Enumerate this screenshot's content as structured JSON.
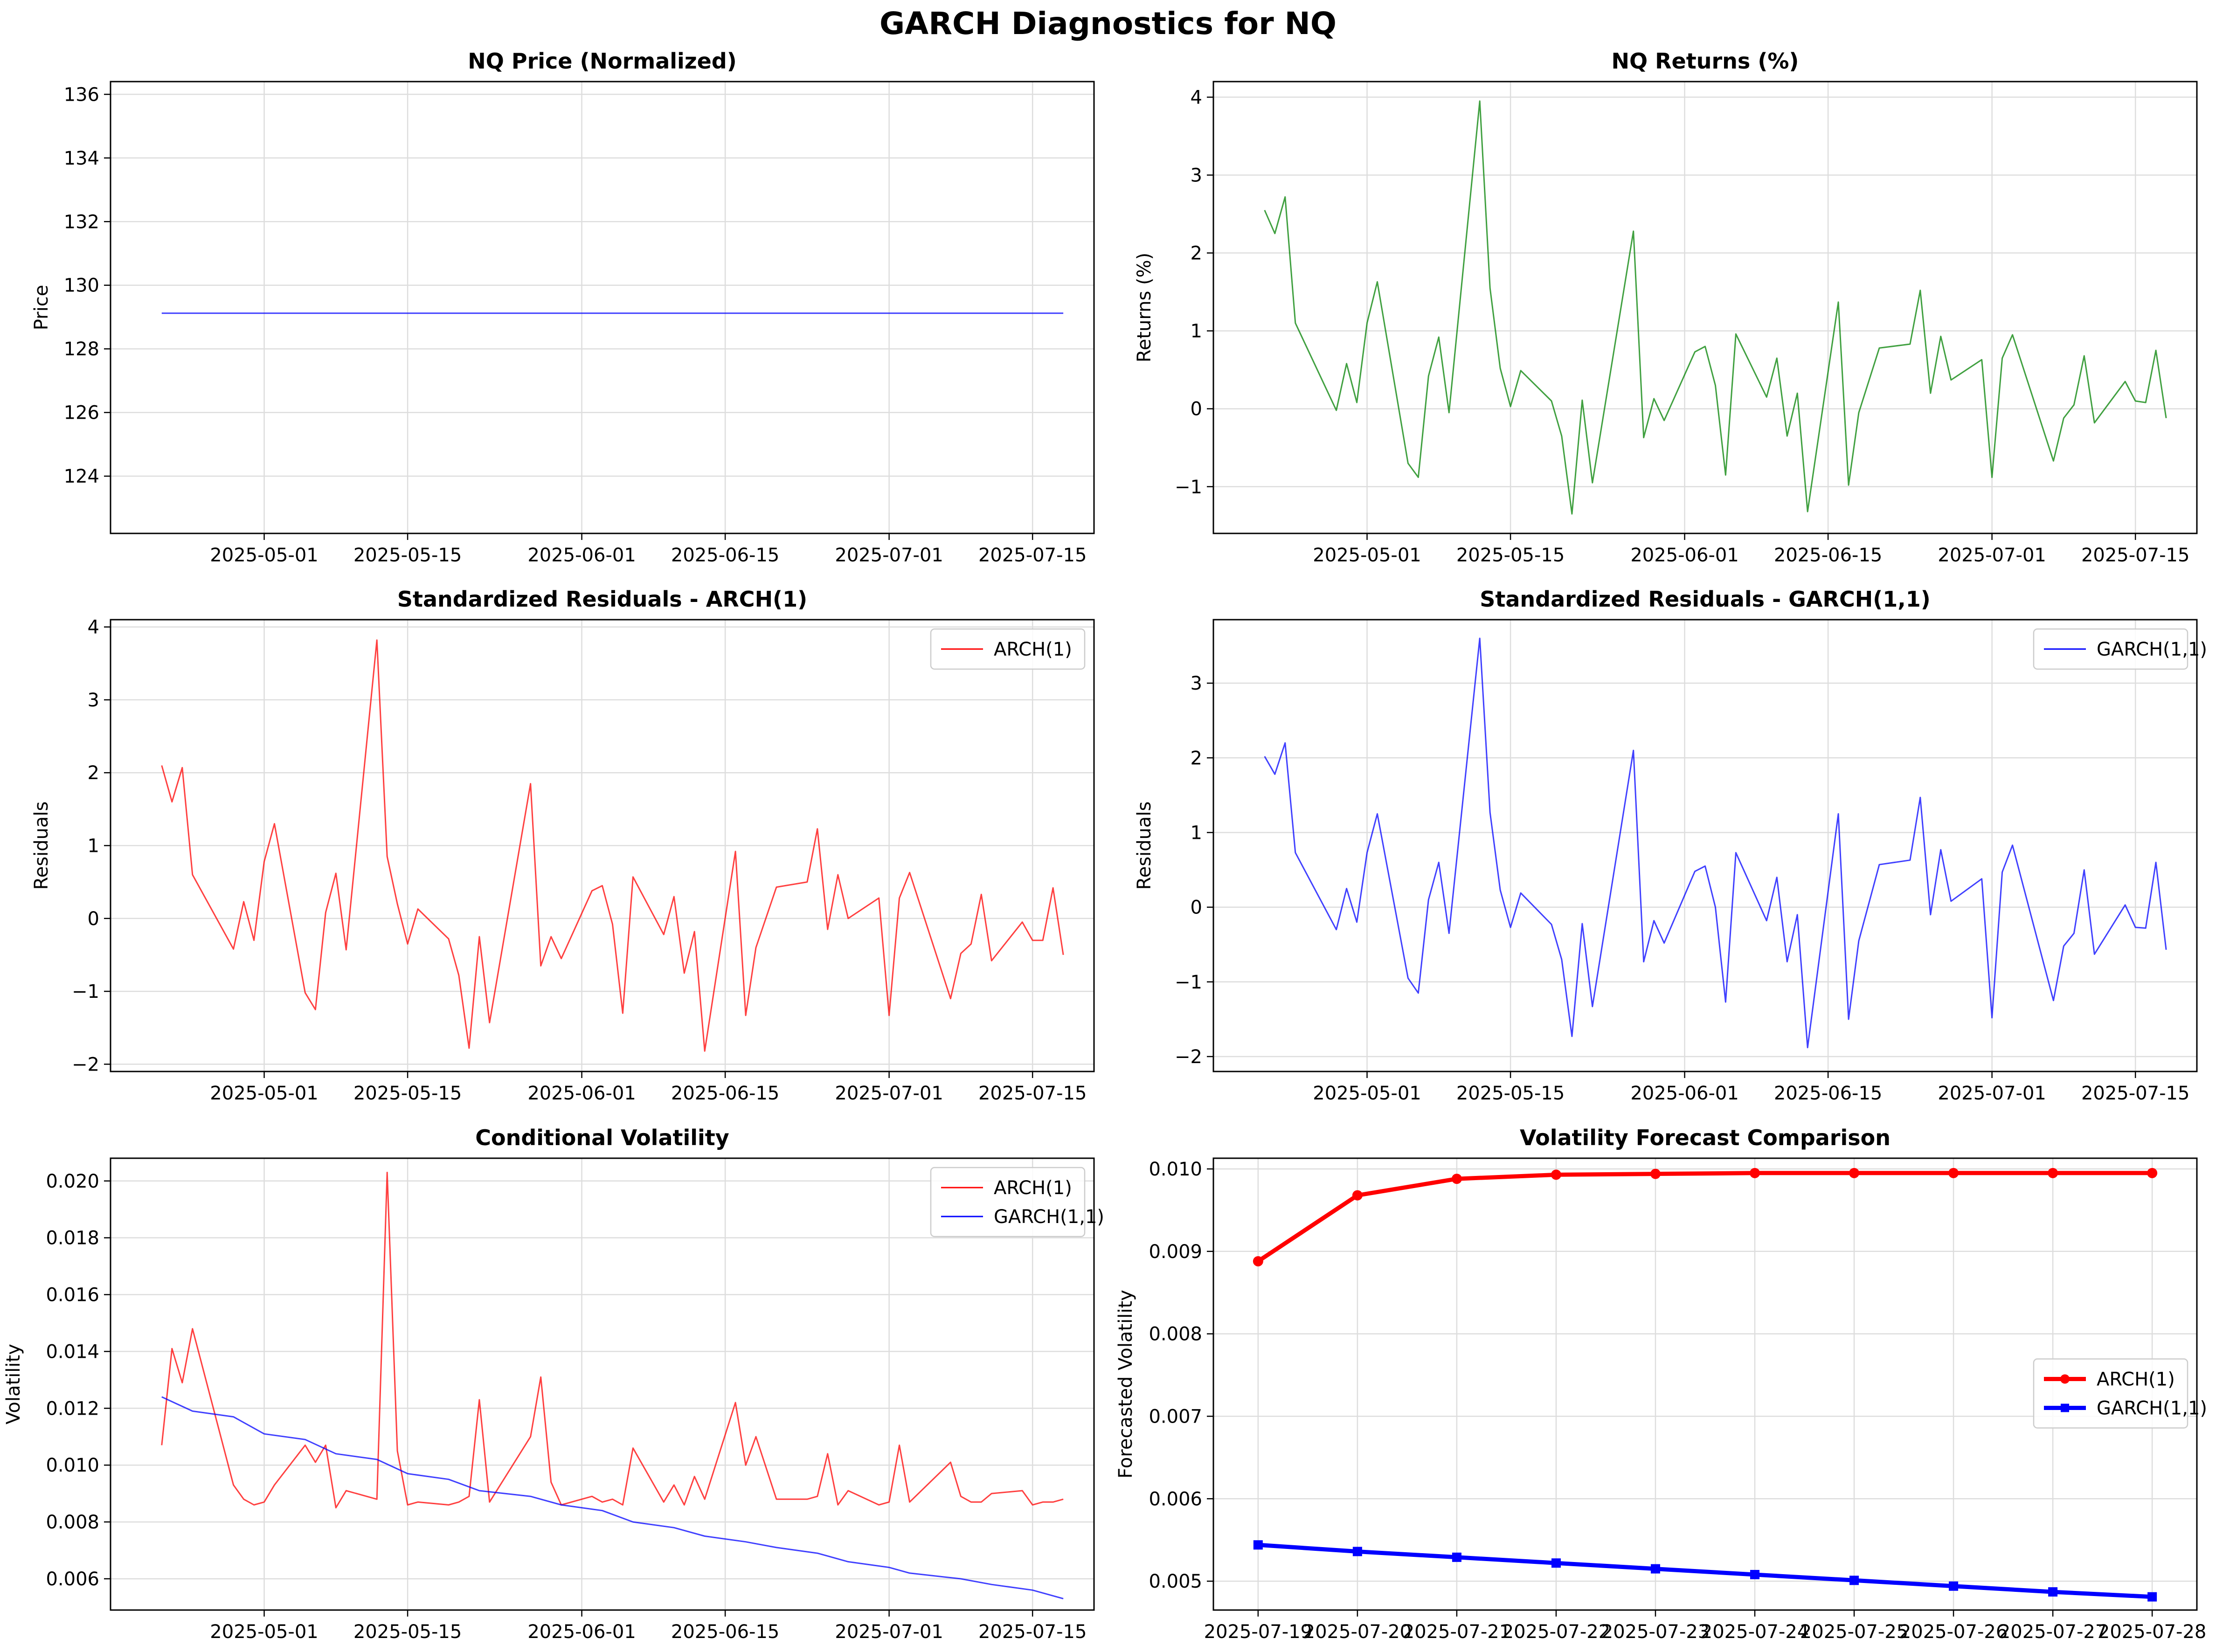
{
  "figure": {
    "title": "GARCH Diagnostics for NQ"
  },
  "colors": {
    "arch": "#ff0000",
    "garch": "#0000ff",
    "returns": "#008000",
    "price": "#0000ff",
    "grid": "#dddddd"
  },
  "chart_data": [
    {
      "id": "price",
      "type": "line",
      "title": "NQ Price (Normalized)",
      "xlabel": "",
      "ylabel": "Price",
      "x_type": "date",
      "xlim": [
        "2025-04-16",
        "2025-07-21"
      ],
      "ylim": [
        122.2,
        136.4
      ],
      "yticks": [
        124,
        126,
        128,
        130,
        132,
        134,
        136
      ],
      "xticks": [
        "2025-05-01",
        "2025-05-15",
        "2025-06-01",
        "2025-06-15",
        "2025-07-01",
        "2025-07-15"
      ],
      "grid": true,
      "legend": null,
      "series": [
        {
          "name": "",
          "color": "#0000ff",
          "lw": 3,
          "x": [
            "2025-04-21",
            "2025-07-18"
          ],
          "y": [
            129.12,
            129.12
          ]
        }
      ]
    },
    {
      "id": "returns",
      "type": "line",
      "title": "NQ Returns (%)",
      "xlabel": "",
      "ylabel": "Returns (%)",
      "x_type": "date",
      "xlim": [
        "2025-04-16",
        "2025-07-21"
      ],
      "ylim": [
        -1.6,
        4.2
      ],
      "yticks": [
        -1,
        0,
        1,
        2,
        3,
        4
      ],
      "xticks": [
        "2025-05-01",
        "2025-05-15",
        "2025-06-01",
        "2025-06-15",
        "2025-07-01",
        "2025-07-15"
      ],
      "grid": true,
      "legend": null,
      "series": [
        {
          "name": "",
          "color": "#008000",
          "lw": 3,
          "x": [
            "2025-04-21",
            "2025-04-22",
            "2025-04-23",
            "2025-04-24",
            "2025-04-28",
            "2025-04-29",
            "2025-04-30",
            "2025-05-01",
            "2025-05-02",
            "2025-05-05",
            "2025-05-06",
            "2025-05-07",
            "2025-05-08",
            "2025-05-09",
            "2025-05-12",
            "2025-05-13",
            "2025-05-14",
            "2025-05-15",
            "2025-05-16",
            "2025-05-19",
            "2025-05-20",
            "2025-05-21",
            "2025-05-22",
            "2025-05-23",
            "2025-05-27",
            "2025-05-28",
            "2025-05-29",
            "2025-05-30",
            "2025-06-02",
            "2025-06-03",
            "2025-06-04",
            "2025-06-05",
            "2025-06-06",
            "2025-06-09",
            "2025-06-10",
            "2025-06-11",
            "2025-06-12",
            "2025-06-13",
            "2025-06-16",
            "2025-06-17",
            "2025-06-18",
            "2025-06-20",
            "2025-06-23",
            "2025-06-24",
            "2025-06-25",
            "2025-06-26",
            "2025-06-27",
            "2025-06-30",
            "2025-07-01",
            "2025-07-02",
            "2025-07-03",
            "2025-07-07",
            "2025-07-08",
            "2025-07-09",
            "2025-07-10",
            "2025-07-11",
            "2025-07-14",
            "2025-07-15",
            "2025-07-16",
            "2025-07-17",
            "2025-07-18"
          ],
          "y": [
            2.55,
            2.25,
            2.72,
            1.1,
            -0.02,
            0.58,
            0.08,
            1.1,
            1.63,
            -0.7,
            -0.88,
            0.42,
            0.92,
            -0.05,
            3.95,
            1.55,
            0.52,
            0.03,
            0.49,
            0.1,
            -0.35,
            -1.35,
            0.11,
            -0.95,
            2.28,
            -0.37,
            0.13,
            -0.15,
            0.73,
            0.8,
            0.3,
            -0.85,
            0.96,
            0.15,
            0.65,
            -0.35,
            0.2,
            -1.32,
            1.37,
            -0.98,
            -0.05,
            0.78,
            0.83,
            1.52,
            0.2,
            0.93,
            0.37,
            0.63,
            -0.88,
            0.65,
            0.95,
            -0.67,
            -0.12,
            0.05,
            0.68,
            -0.18,
            0.35,
            0.1,
            0.08,
            0.75,
            -0.12
          ]
        }
      ]
    },
    {
      "id": "resid_arch",
      "type": "line",
      "title": "Standardized Residuals - ARCH(1)",
      "xlabel": "",
      "ylabel": "Residuals",
      "x_type": "date",
      "xlim": [
        "2025-04-16",
        "2025-07-21"
      ],
      "ylim": [
        -2.1,
        4.1
      ],
      "yticks": [
        -2,
        -1,
        0,
        1,
        2,
        3,
        4
      ],
      "xticks": [
        "2025-05-01",
        "2025-05-15",
        "2025-06-01",
        "2025-06-15",
        "2025-07-01",
        "2025-07-15"
      ],
      "grid": true,
      "legend": "upper right",
      "series": [
        {
          "name": "ARCH(1)",
          "color": "#ff0000",
          "lw": 3,
          "x": [
            "2025-04-21",
            "2025-04-22",
            "2025-04-23",
            "2025-04-24",
            "2025-04-28",
            "2025-04-29",
            "2025-04-30",
            "2025-05-01",
            "2025-05-02",
            "2025-05-05",
            "2025-05-06",
            "2025-05-07",
            "2025-05-08",
            "2025-05-09",
            "2025-05-12",
            "2025-05-13",
            "2025-05-14",
            "2025-05-15",
            "2025-05-16",
            "2025-05-19",
            "2025-05-20",
            "2025-05-21",
            "2025-05-22",
            "2025-05-23",
            "2025-05-27",
            "2025-05-28",
            "2025-05-29",
            "2025-05-30",
            "2025-06-02",
            "2025-06-03",
            "2025-06-04",
            "2025-06-05",
            "2025-06-06",
            "2025-06-09",
            "2025-06-10",
            "2025-06-11",
            "2025-06-12",
            "2025-06-13",
            "2025-06-16",
            "2025-06-17",
            "2025-06-18",
            "2025-06-20",
            "2025-06-23",
            "2025-06-24",
            "2025-06-25",
            "2025-06-26",
            "2025-06-27",
            "2025-06-30",
            "2025-07-01",
            "2025-07-02",
            "2025-07-03",
            "2025-07-07",
            "2025-07-08",
            "2025-07-09",
            "2025-07-10",
            "2025-07-11",
            "2025-07-14",
            "2025-07-15",
            "2025-07-16",
            "2025-07-17",
            "2025-07-18"
          ],
          "y": [
            2.1,
            1.6,
            2.07,
            0.6,
            -0.42,
            0.23,
            -0.3,
            0.78,
            1.3,
            -1.02,
            -1.25,
            0.08,
            0.62,
            -0.43,
            3.82,
            0.85,
            0.2,
            -0.35,
            0.13,
            -0.28,
            -0.78,
            -1.78,
            -0.25,
            -1.43,
            1.85,
            -0.65,
            -0.25,
            -0.55,
            0.38,
            0.45,
            -0.08,
            -1.3,
            0.57,
            -0.22,
            0.3,
            -0.75,
            -0.18,
            -1.82,
            0.92,
            -1.33,
            -0.4,
            0.43,
            0.5,
            1.23,
            -0.15,
            0.6,
            0.0,
            0.28,
            -1.33,
            0.28,
            0.63,
            -1.1,
            -0.48,
            -0.35,
            0.33,
            -0.58,
            -0.05,
            -0.3,
            -0.3,
            0.42,
            -0.5
          ]
        }
      ]
    },
    {
      "id": "resid_garch",
      "type": "line",
      "title": "Standardized Residuals - GARCH(1,1)",
      "xlabel": "",
      "ylabel": "Residuals",
      "x_type": "date",
      "xlim": [
        "2025-04-16",
        "2025-07-21"
      ],
      "ylim": [
        -2.2,
        3.85
      ],
      "yticks": [
        -2,
        -1,
        0,
        1,
        2,
        3
      ],
      "xticks": [
        "2025-05-01",
        "2025-05-15",
        "2025-06-01",
        "2025-06-15",
        "2025-07-01",
        "2025-07-15"
      ],
      "grid": true,
      "legend": "upper right",
      "series": [
        {
          "name": "GARCH(1,1)",
          "color": "#0000ff",
          "lw": 3,
          "x": [
            "2025-04-21",
            "2025-04-22",
            "2025-04-23",
            "2025-04-24",
            "2025-04-28",
            "2025-04-29",
            "2025-04-30",
            "2025-05-01",
            "2025-05-02",
            "2025-05-05",
            "2025-05-06",
            "2025-05-07",
            "2025-05-08",
            "2025-05-09",
            "2025-05-12",
            "2025-05-13",
            "2025-05-14",
            "2025-05-15",
            "2025-05-16",
            "2025-05-19",
            "2025-05-20",
            "2025-05-21",
            "2025-05-22",
            "2025-05-23",
            "2025-05-27",
            "2025-05-28",
            "2025-05-29",
            "2025-05-30",
            "2025-06-02",
            "2025-06-03",
            "2025-06-04",
            "2025-06-05",
            "2025-06-06",
            "2025-06-09",
            "2025-06-10",
            "2025-06-11",
            "2025-06-12",
            "2025-06-13",
            "2025-06-16",
            "2025-06-17",
            "2025-06-18",
            "2025-06-20",
            "2025-06-23",
            "2025-06-24",
            "2025-06-25",
            "2025-06-26",
            "2025-06-27",
            "2025-06-30",
            "2025-07-01",
            "2025-07-02",
            "2025-07-03",
            "2025-07-07",
            "2025-07-08",
            "2025-07-09",
            "2025-07-10",
            "2025-07-11",
            "2025-07-14",
            "2025-07-15",
            "2025-07-16",
            "2025-07-17",
            "2025-07-18"
          ],
          "y": [
            2.02,
            1.78,
            2.2,
            0.73,
            -0.3,
            0.25,
            -0.2,
            0.73,
            1.25,
            -0.95,
            -1.15,
            0.1,
            0.6,
            -0.35,
            3.6,
            1.27,
            0.23,
            -0.27,
            0.19,
            -0.23,
            -0.7,
            -1.73,
            -0.22,
            -1.33,
            2.1,
            -0.73,
            -0.18,
            -0.48,
            0.48,
            0.55,
            0.0,
            -1.27,
            0.73,
            -0.18,
            0.4,
            -0.73,
            -0.1,
            -1.88,
            1.25,
            -1.5,
            -0.45,
            0.57,
            0.63,
            1.47,
            -0.1,
            0.77,
            0.08,
            0.38,
            -1.48,
            0.47,
            0.83,
            -1.25,
            -0.52,
            -0.35,
            0.5,
            -0.63,
            0.03,
            -0.27,
            -0.28,
            0.6,
            -0.57
          ]
        }
      ]
    },
    {
      "id": "cond_vol",
      "type": "line",
      "title": "Conditional Volatility",
      "xlabel": "",
      "ylabel": "Volatility",
      "x_type": "date",
      "xlim": [
        "2025-04-16",
        "2025-07-21"
      ],
      "ylim": [
        0.0049,
        0.0208
      ],
      "yticks": [
        0.006,
        0.008,
        0.01,
        0.012,
        0.014,
        0.016,
        0.018,
        0.02
      ],
      "ytick_labels": [
        "0.006",
        "0.008",
        "0.010",
        "0.012",
        "0.014",
        "0.016",
        "0.018",
        "0.020"
      ],
      "xticks": [
        "2025-05-01",
        "2025-05-15",
        "2025-06-01",
        "2025-06-15",
        "2025-07-01",
        "2025-07-15"
      ],
      "grid": true,
      "legend": "upper right",
      "series": [
        {
          "name": "ARCH(1)",
          "color": "#ff0000",
          "lw": 3,
          "x": [
            "2025-04-21",
            "2025-04-22",
            "2025-04-23",
            "2025-04-24",
            "2025-04-28",
            "2025-04-29",
            "2025-04-30",
            "2025-05-01",
            "2025-05-02",
            "2025-05-05",
            "2025-05-06",
            "2025-05-07",
            "2025-05-08",
            "2025-05-09",
            "2025-05-12",
            "2025-05-13",
            "2025-05-14",
            "2025-05-15",
            "2025-05-16",
            "2025-05-19",
            "2025-05-20",
            "2025-05-21",
            "2025-05-22",
            "2025-05-23",
            "2025-05-27",
            "2025-05-28",
            "2025-05-29",
            "2025-05-30",
            "2025-06-02",
            "2025-06-03",
            "2025-06-04",
            "2025-06-05",
            "2025-06-06",
            "2025-06-09",
            "2025-06-10",
            "2025-06-11",
            "2025-06-12",
            "2025-06-13",
            "2025-06-16",
            "2025-06-17",
            "2025-06-18",
            "2025-06-20",
            "2025-06-23",
            "2025-06-24",
            "2025-06-25",
            "2025-06-26",
            "2025-06-27",
            "2025-06-30",
            "2025-07-01",
            "2025-07-02",
            "2025-07-03",
            "2025-07-07",
            "2025-07-08",
            "2025-07-09",
            "2025-07-10",
            "2025-07-11",
            "2025-07-14",
            "2025-07-15",
            "2025-07-16",
            "2025-07-17",
            "2025-07-18"
          ],
          "y": [
            0.0107,
            0.0141,
            0.0129,
            0.0148,
            0.0093,
            0.0088,
            0.0086,
            0.0087,
            0.0093,
            0.0107,
            0.0101,
            0.0107,
            0.0085,
            0.0091,
            0.0088,
            0.0203,
            0.0105,
            0.0086,
            0.0087,
            0.0086,
            0.0087,
            0.0089,
            0.0123,
            0.0087,
            0.011,
            0.0131,
            0.0094,
            0.0086,
            0.0089,
            0.0087,
            0.0088,
            0.0086,
            0.0106,
            0.0087,
            0.0093,
            0.0086,
            0.0096,
            0.0088,
            0.0122,
            0.01,
            0.011,
            0.0088,
            0.0088,
            0.0089,
            0.0104,
            0.0086,
            0.0091,
            0.0086,
            0.0087,
            0.0107,
            0.0087,
            0.0101,
            0.0089,
            0.0087,
            0.0087,
            0.009,
            0.0091,
            0.0086,
            0.0087,
            0.0087,
            0.0088
          ]
        },
        {
          "name": "GARCH(1,1)",
          "color": "#0000ff",
          "lw": 3,
          "x": [
            "2025-04-21",
            "2025-04-24",
            "2025-04-28",
            "2025-05-01",
            "2025-05-05",
            "2025-05-08",
            "2025-05-12",
            "2025-05-15",
            "2025-05-19",
            "2025-05-22",
            "2025-05-27",
            "2025-05-30",
            "2025-06-03",
            "2025-06-06",
            "2025-06-10",
            "2025-06-13",
            "2025-06-17",
            "2025-06-20",
            "2025-06-24",
            "2025-06-27",
            "2025-07-01",
            "2025-07-03",
            "2025-07-08",
            "2025-07-11",
            "2025-07-15",
            "2025-07-18"
          ],
          "y": [
            0.0124,
            0.0119,
            0.0117,
            0.0111,
            0.0109,
            0.0104,
            0.0102,
            0.0097,
            0.0095,
            0.0091,
            0.0089,
            0.0086,
            0.0084,
            0.008,
            0.0078,
            0.0075,
            0.0073,
            0.0071,
            0.0069,
            0.0066,
            0.0064,
            0.0062,
            0.006,
            0.0058,
            0.0056,
            0.0053
          ]
        }
      ]
    },
    {
      "id": "forecast",
      "type": "line",
      "title": "Volatility Forecast Comparison",
      "xlabel": "",
      "ylabel": "Forecasted Volatility",
      "x_type": "category",
      "categories": [
        "2025-07-19",
        "2025-07-20",
        "2025-07-21",
        "2025-07-22",
        "2025-07-23",
        "2025-07-24",
        "2025-07-25",
        "2025-07-26",
        "2025-07-27",
        "2025-07-28"
      ],
      "xlim_idx": [
        -0.45,
        9.45
      ],
      "ylim": [
        0.00465,
        0.01013
      ],
      "yticks": [
        0.005,
        0.006,
        0.007,
        0.008,
        0.009,
        0.01
      ],
      "ytick_labels": [
        "0.005",
        "0.006",
        "0.007",
        "0.008",
        "0.009",
        "0.010"
      ],
      "grid": true,
      "legend": "center right",
      "series": [
        {
          "name": "ARCH(1)",
          "color": "#ff0000",
          "lw": 9,
          "marker": "circle",
          "values": [
            0.00888,
            0.00968,
            0.00988,
            0.00993,
            0.00994,
            0.00995,
            0.00995,
            0.00995,
            0.00995,
            0.00995
          ]
        },
        {
          "name": "GARCH(1,1)",
          "color": "#0000ff",
          "lw": 9,
          "marker": "square",
          "values": [
            0.00544,
            0.00536,
            0.00529,
            0.00522,
            0.00515,
            0.00508,
            0.00501,
            0.00494,
            0.00487,
            0.00481
          ]
        }
      ]
    }
  ]
}
